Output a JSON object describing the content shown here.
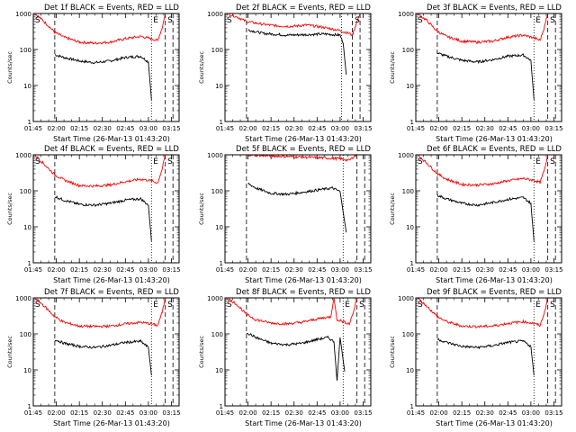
{
  "colors": {
    "events": "#000000",
    "lld": "#ff0000",
    "axis": "#000000",
    "background": "#ffffff"
  },
  "shared": {
    "ylabel": "Counts/sec",
    "xlabel": "Start Time (26-Mar-13 01:43:20)",
    "xticks": [
      "01:45",
      "02:00",
      "02:15",
      "02:30",
      "02:45",
      "03:00",
      "03:15"
    ],
    "yticks": [
      "1",
      "10",
      "100",
      "1000"
    ],
    "xlim_minutes": [
      105,
      200
    ],
    "ylim": [
      1,
      1000
    ],
    "yscale": "log"
  },
  "chart_data": [
    {
      "type": "line",
      "title": "Det 1f BLACK = Events, RED = LLD",
      "markers": {
        "S": true,
        "E": true
      },
      "dash_start": 119,
      "dot_end": 182,
      "dash_end1": 191,
      "dash_end2": 196,
      "series": [
        {
          "name": "Events",
          "x": [
            119,
            125,
            135,
            145,
            155,
            165,
            175,
            180,
            182
          ],
          "values": [
            72,
            60,
            48,
            43,
            48,
            60,
            65,
            45,
            4
          ]
        },
        {
          "name": "LLD",
          "x": [
            106,
            112,
            119,
            125,
            135,
            145,
            155,
            165,
            175,
            182,
            186,
            189,
            191
          ],
          "values": [
            1000,
            600,
            300,
            220,
            160,
            150,
            160,
            200,
            230,
            200,
            175,
            400,
            1000
          ]
        }
      ]
    },
    {
      "type": "line",
      "title": "Det 2f BLACK = Events, RED = LLD",
      "markers": {
        "S": true,
        "E": false
      },
      "dash_start": 119,
      "dot_end": 181,
      "dash_end1": 188,
      "dash_end2": 193,
      "series": [
        {
          "name": "Events",
          "x": [
            120,
            130,
            145,
            160,
            170,
            180,
            182,
            184
          ],
          "values": [
            350,
            280,
            250,
            260,
            270,
            250,
            150,
            20
          ]
        },
        {
          "name": "LLD",
          "x": [
            106,
            113,
            119,
            130,
            140,
            150,
            158,
            168,
            178,
            186,
            188,
            191,
            193
          ],
          "values": [
            1000,
            800,
            600,
            500,
            450,
            440,
            480,
            420,
            350,
            280,
            250,
            600,
            1000
          ]
        }
      ]
    },
    {
      "type": "line",
      "title": "Det 3f BLACK = Events, RED = LLD",
      "markers": {
        "S": true,
        "E": true
      },
      "dash_start": 119,
      "dot_end": 182,
      "dash_end1": 191,
      "dash_end2": 196,
      "series": [
        {
          "name": "Events",
          "x": [
            119,
            125,
            135,
            145,
            155,
            165,
            175,
            180,
            182
          ],
          "values": [
            80,
            65,
            50,
            45,
            52,
            65,
            70,
            50,
            4
          ]
        },
        {
          "name": "LLD",
          "x": [
            106,
            112,
            119,
            125,
            135,
            145,
            155,
            165,
            175,
            182,
            186,
            189,
            191
          ],
          "values": [
            1000,
            650,
            320,
            230,
            170,
            160,
            170,
            220,
            250,
            210,
            180,
            450,
            1000
          ]
        }
      ]
    },
    {
      "type": "line",
      "title": "Det 4f BLACK = Events, RED = LLD",
      "markers": {
        "S": true,
        "E": true
      },
      "dash_start": 119,
      "dot_end": 182,
      "dash_end1": 191,
      "dash_end2": 196,
      "series": [
        {
          "name": "Events",
          "x": [
            119,
            125,
            135,
            145,
            155,
            165,
            175,
            180,
            182
          ],
          "values": [
            70,
            55,
            42,
            40,
            45,
            55,
            60,
            40,
            4
          ]
        },
        {
          "name": "LLD",
          "x": [
            106,
            112,
            119,
            125,
            135,
            145,
            155,
            165,
            175,
            182,
            186,
            189,
            191
          ],
          "values": [
            1000,
            550,
            280,
            200,
            140,
            135,
            145,
            180,
            210,
            190,
            165,
            400,
            1000
          ]
        }
      ]
    },
    {
      "type": "line",
      "title": "Det 5f BLACK = Events, RED = LLD",
      "markers": {
        "S": false,
        "E": false
      },
      "dash_start": 119,
      "dot_end": 182,
      "dash_end1": 191,
      "dash_end2": 196,
      "series": [
        {
          "name": "Events",
          "x": [
            120,
            125,
            135,
            145,
            155,
            165,
            175,
            180,
            184
          ],
          "values": [
            160,
            120,
            85,
            80,
            90,
            105,
            120,
            95,
            7
          ]
        },
        {
          "name": "LLD",
          "x": [
            119,
            130,
            145,
            160,
            170,
            180,
            186,
            189,
            191
          ],
          "values": [
            1000,
            950,
            900,
            850,
            820,
            780,
            700,
            900,
            1000
          ]
        }
      ]
    },
    {
      "type": "line",
      "title": "Det 6f BLACK = Events, RED = LLD",
      "markers": {
        "S": true,
        "E": true
      },
      "dash_start": 119,
      "dot_end": 182,
      "dash_end1": 191,
      "dash_end2": 196,
      "series": [
        {
          "name": "Events",
          "x": [
            119,
            125,
            135,
            145,
            155,
            165,
            175,
            180,
            182
          ],
          "values": [
            75,
            60,
            45,
            40,
            47,
            58,
            65,
            45,
            4
          ]
        },
        {
          "name": "LLD",
          "x": [
            106,
            112,
            119,
            125,
            135,
            145,
            155,
            165,
            175,
            182,
            186,
            189,
            191
          ],
          "values": [
            1000,
            600,
            300,
            210,
            150,
            145,
            155,
            190,
            220,
            195,
            170,
            400,
            1000
          ]
        }
      ]
    },
    {
      "type": "line",
      "title": "Det 7f BLACK = Events, RED = LLD",
      "markers": {
        "S": true,
        "E": true
      },
      "dash_start": 119,
      "dot_end": 182,
      "dash_end1": 191,
      "dash_end2": 196,
      "series": [
        {
          "name": "Events",
          "x": [
            119,
            125,
            135,
            145,
            155,
            165,
            175,
            180,
            182
          ],
          "values": [
            70,
            55,
            45,
            42,
            48,
            58,
            62,
            42,
            7
          ]
        },
        {
          "name": "LLD",
          "x": [
            106,
            112,
            119,
            125,
            135,
            145,
            155,
            165,
            175,
            182,
            186,
            189,
            191
          ],
          "values": [
            1000,
            600,
            300,
            210,
            165,
            160,
            165,
            190,
            210,
            190,
            170,
            400,
            1000
          ]
        }
      ]
    },
    {
      "type": "line",
      "title": "Det 8f BLACK = Events, RED = LLD",
      "markers": {
        "S": true,
        "E": true
      },
      "dash_start": 119,
      "dot_end": 182,
      "dash_end1": 191,
      "dash_end2": 196,
      "series": [
        {
          "name": "Events",
          "x": [
            119,
            125,
            135,
            145,
            155,
            165,
            172,
            176,
            178,
            180,
            183
          ],
          "values": [
            110,
            80,
            55,
            50,
            55,
            70,
            80,
            60,
            5,
            80,
            9
          ]
        },
        {
          "name": "LLD",
          "x": [
            106,
            112,
            119,
            125,
            135,
            145,
            155,
            165,
            174,
            176,
            178,
            182,
            186,
            189,
            191
          ],
          "values": [
            1000,
            700,
            350,
            250,
            200,
            190,
            210,
            260,
            300,
            1000,
            250,
            220,
            190,
            450,
            1000
          ]
        }
      ]
    },
    {
      "type": "line",
      "title": "Det 9f BLACK = Events, RED = LLD",
      "markers": {
        "S": true,
        "E": true
      },
      "dash_start": 119,
      "dot_end": 182,
      "dash_end1": 191,
      "dash_end2": 196,
      "series": [
        {
          "name": "Events",
          "x": [
            119,
            125,
            135,
            145,
            155,
            165,
            175,
            180,
            182
          ],
          "values": [
            72,
            58,
            45,
            42,
            47,
            58,
            63,
            45,
            7
          ]
        },
        {
          "name": "LLD",
          "x": [
            106,
            112,
            119,
            125,
            135,
            145,
            155,
            165,
            175,
            182,
            186,
            189,
            191
          ],
          "values": [
            1000,
            600,
            300,
            220,
            165,
            160,
            165,
            195,
            220,
            195,
            170,
            420,
            1000
          ]
        }
      ]
    }
  ]
}
